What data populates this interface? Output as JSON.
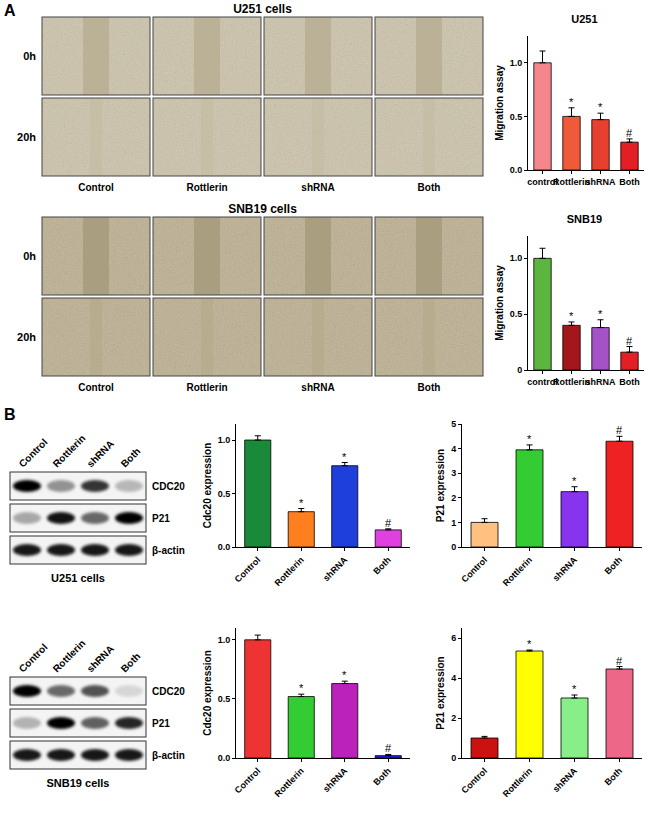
{
  "chart_data": [
    {
      "type": "bar",
      "title": "U251",
      "y_label": "Migration assay",
      "categories": [
        "control",
        "Rottlerin",
        "shRNA",
        "Both"
      ],
      "values": [
        1.0,
        0.5,
        0.47,
        0.26
      ],
      "errors": [
        0.11,
        0.08,
        0.06,
        0.03
      ],
      "significance": [
        null,
        "*",
        "*",
        "#"
      ],
      "colors": [
        "#f4868c",
        "#ee5a3a",
        "#e8402e",
        "#e31e24"
      ],
      "ylim": [
        0,
        1.25
      ],
      "yticks": [
        {
          "value": 0,
          "label": "0.0"
        },
        0.5,
        {
          "value": 1,
          "label": "1.0"
        }
      ]
    },
    {
      "type": "bar",
      "title": "SNB19",
      "y_label": "Migration assay",
      "categories": [
        "control",
        "Rottlerin",
        "shRNA",
        "Both"
      ],
      "values": [
        1.0,
        0.4,
        0.38,
        0.16
      ],
      "errors": [
        0.09,
        0.03,
        0.07,
        0.05
      ],
      "significance": [
        null,
        "*",
        "*",
        "#"
      ],
      "colors": [
        "#5cb53e",
        "#a3161a",
        "#a452c8",
        "#e31e24"
      ],
      "ylim": [
        0,
        1.2
      ],
      "yticks": [
        0,
        0.5,
        {
          "value": 1,
          "label": "1.0"
        }
      ]
    },
    {
      "type": "bar",
      "y_label": "Cdc20 expression",
      "categories": [
        "Control",
        "Rottlerin",
        "shRNA",
        "Both"
      ],
      "values": [
        1.0,
        0.33,
        0.76,
        0.16
      ],
      "errors": [
        0.04,
        0.03,
        0.03,
        0.01
      ],
      "significance": [
        null,
        "*",
        "*",
        "#"
      ],
      "colors": [
        "#1a8a3a",
        "#ff7f1e",
        "#1f3fdd",
        "#e040e0"
      ],
      "ylim": [
        0,
        1.15
      ],
      "yticks": [
        {
          "value": 0,
          "label": "0.0"
        },
        0.5,
        {
          "value": 1,
          "label": "1.0"
        }
      ]
    },
    {
      "type": "bar",
      "y_label": "P21 expression",
      "categories": [
        "Control",
        "Rottlerin",
        "shRNA",
        "Both"
      ],
      "values": [
        1.0,
        3.95,
        2.25,
        4.3
      ],
      "errors": [
        0.15,
        0.2,
        0.2,
        0.2
      ],
      "significance": [
        null,
        "*",
        "*",
        "#"
      ],
      "colors": [
        "#ffc080",
        "#33cc33",
        "#8833ee",
        "#ee2222"
      ],
      "ylim": [
        0,
        5
      ],
      "yticks": [
        0,
        1,
        2,
        3,
        4,
        5
      ]
    },
    {
      "type": "bar",
      "y_label": "Cdc20 expression",
      "categories": [
        "Control",
        "Rottlerin",
        "shRNA",
        "Both"
      ],
      "values": [
        1.0,
        0.52,
        0.63,
        0.02
      ],
      "errors": [
        0.04,
        0.02,
        0.02,
        0.01
      ],
      "significance": [
        null,
        "*",
        "*",
        "#"
      ],
      "colors": [
        "#ee3333",
        "#33cc33",
        "#bb22bb",
        "#2222dd"
      ],
      "ylim": [
        0,
        1.1
      ],
      "yticks": [
        {
          "value": 0,
          "label": "0.0"
        },
        0.5,
        {
          "value": 1,
          "label": "1.0"
        }
      ]
    },
    {
      "type": "bar",
      "y_label": "P21 expression",
      "categories": [
        "Control",
        "Rottlerin",
        "shRNA",
        "Both"
      ],
      "values": [
        1.0,
        5.35,
        3.0,
        4.45
      ],
      "errors": [
        0.08,
        0.05,
        0.15,
        0.12
      ],
      "significance": [
        null,
        "*",
        "*",
        "#"
      ],
      "colors": [
        "#cc1111",
        "#ffff00",
        "#88ee88",
        "#ee6688"
      ],
      "ylim": [
        0,
        6.5
      ],
      "yticks": [
        0,
        2,
        4,
        6
      ]
    }
  ],
  "figure": {
    "panel_labels": [
      "A",
      "B"
    ],
    "wound_assays": [
      {
        "title": "U251 cells",
        "rows": [
          "0h",
          "20h"
        ],
        "columns": [
          "Control",
          "Rottlerin",
          "shRNA",
          "Both"
        ]
      },
      {
        "title": "SNB19 cells",
        "rows": [
          "0h",
          "20h"
        ],
        "columns": [
          "Control",
          "Rottlerin",
          "shRNA",
          "Both"
        ]
      }
    ],
    "blots": [
      {
        "lanes": [
          "Control",
          "Rottlerin",
          "shRNA",
          "Both"
        ],
        "bands": [
          "CDC20",
          "P21",
          "β-actin"
        ],
        "caption": "U251 cells"
      },
      {
        "lanes": [
          "Control",
          "Rottlerin",
          "shRNA",
          "Both"
        ],
        "bands": [
          "CDC20",
          "P21",
          "β-actin"
        ],
        "caption": "SNB19 cells"
      }
    ]
  }
}
